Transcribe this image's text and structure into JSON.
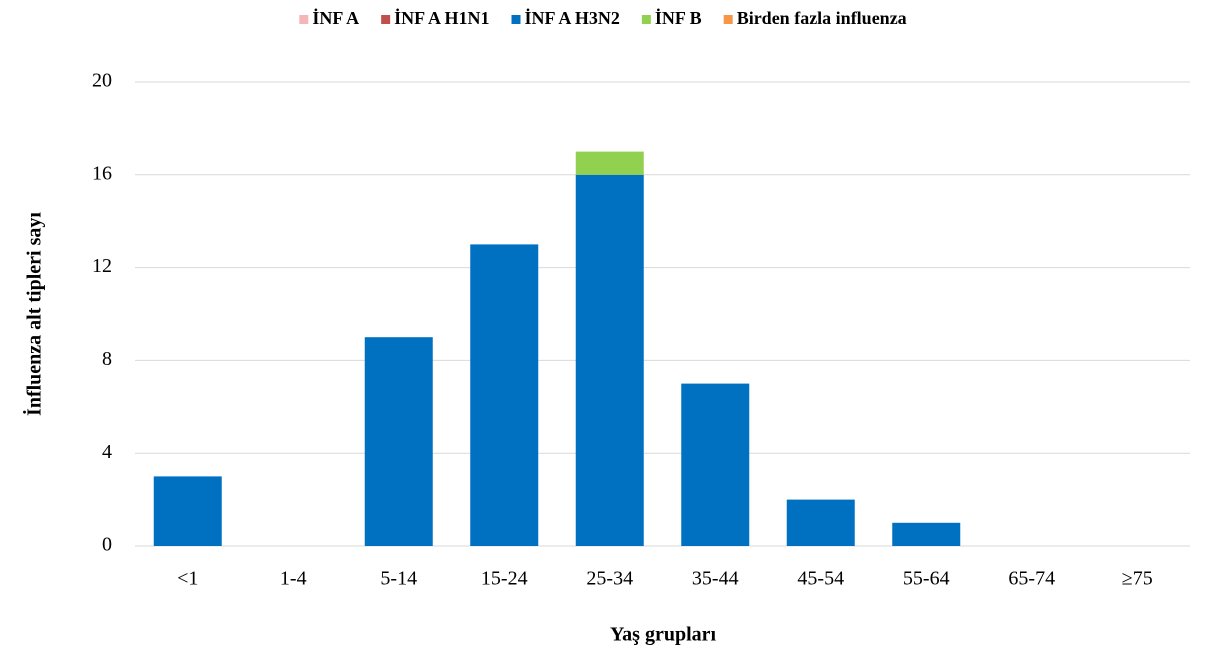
{
  "chart_data": {
    "type": "stacked_bar",
    "y_label": "İnfluenza alt tipleri sayı",
    "x_label": "Yaş grupları",
    "categories": [
      "<1",
      "1-4",
      "5-14",
      "15-24",
      "25-34",
      "35-44",
      "45-54",
      "55-64",
      "65-74",
      "≥75"
    ],
    "series": [
      {
        "name": "İNF A",
        "color": "#f4b6b6",
        "values": [
          0,
          0,
          0,
          0,
          0,
          0,
          0,
          0,
          0,
          0
        ]
      },
      {
        "name": "İNF A H1N1",
        "color": "#c0504d",
        "values": [
          0,
          0,
          0,
          0,
          0,
          0,
          0,
          0,
          0,
          0
        ]
      },
      {
        "name": "İNF A H3N2",
        "color": "#0070c0",
        "values": [
          3,
          0,
          9,
          13,
          16,
          7,
          2,
          1,
          0,
          0
        ]
      },
      {
        "name": "İNF B",
        "color": "#92d050",
        "values": [
          0,
          0,
          0,
          0,
          1,
          0,
          0,
          0,
          0,
          0
        ]
      },
      {
        "name": "Birden fazla influenza",
        "color": "#f79646",
        "values": [
          0,
          0,
          0,
          0,
          0,
          0,
          0,
          0,
          0,
          0
        ]
      }
    ],
    "ylim": [
      0,
      20
    ],
    "yticks": [
      0,
      4,
      8,
      12,
      16,
      20
    ],
    "grid": true,
    "legend": "top"
  }
}
